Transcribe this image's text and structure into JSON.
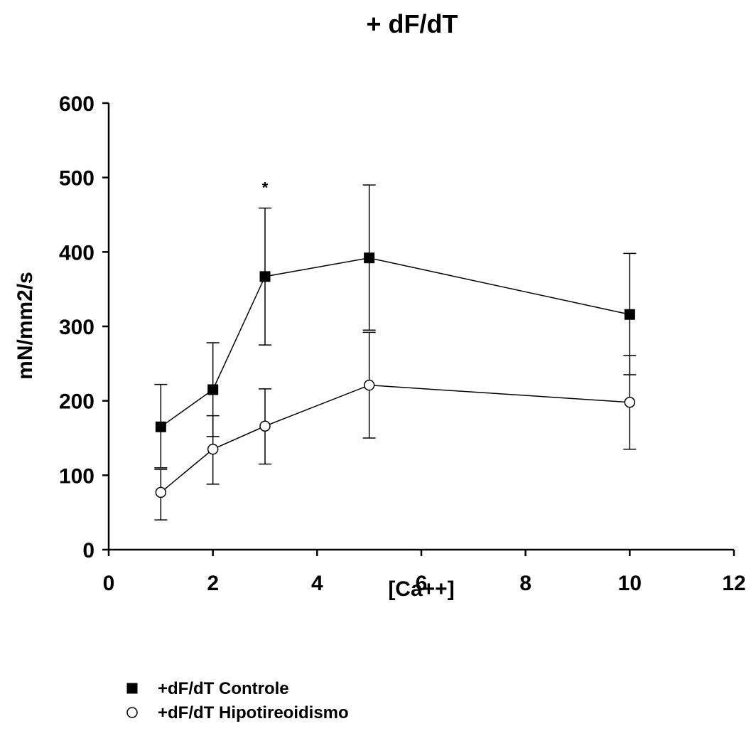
{
  "chart_data": {
    "type": "line",
    "title": "+ dF/dT",
    "xlabel": "[Ca++]",
    "ylabel": "mN/mm2/s",
    "xlim": [
      0,
      12
    ],
    "ylim": [
      0,
      600
    ],
    "xticks": [
      "0",
      "2",
      "4",
      "6",
      "8",
      "10",
      "12"
    ],
    "yticks": [
      "0",
      "100",
      "200",
      "300",
      "400",
      "500",
      "600"
    ],
    "grid": false,
    "legend_position": "bottom-left",
    "series": [
      {
        "name": "+dF/dT Controle",
        "marker": "filled-square",
        "color": "#000000",
        "points": [
          {
            "x": 1,
            "y": 165,
            "err_low": 110,
            "err_high": 222
          },
          {
            "x": 2,
            "y": 215,
            "err_low": 152,
            "err_high": 278
          },
          {
            "x": 3,
            "y": 367,
            "err_low": 275,
            "err_high": 459
          },
          {
            "x": 5,
            "y": 392,
            "err_low": 295,
            "err_high": 490
          },
          {
            "x": 10,
            "y": 316,
            "err_low": 235,
            "err_high": 398
          }
        ]
      },
      {
        "name": "+dF/dT Hipotireoidismo",
        "marker": "open-circle",
        "color": "#000000",
        "points": [
          {
            "x": 1,
            "y": 77,
            "err_low": 40,
            "err_high": 108
          },
          {
            "x": 2,
            "y": 135,
            "err_low": 88,
            "err_high": 180
          },
          {
            "x": 3,
            "y": 166,
            "err_low": 115,
            "err_high": 216
          },
          {
            "x": 5,
            "y": 221,
            "err_low": 150,
            "err_high": 292
          },
          {
            "x": 10,
            "y": 198,
            "err_low": 135,
            "err_high": 261
          }
        ]
      }
    ],
    "annotations": [
      {
        "text": "*",
        "x": 3,
        "y": 500
      }
    ]
  }
}
